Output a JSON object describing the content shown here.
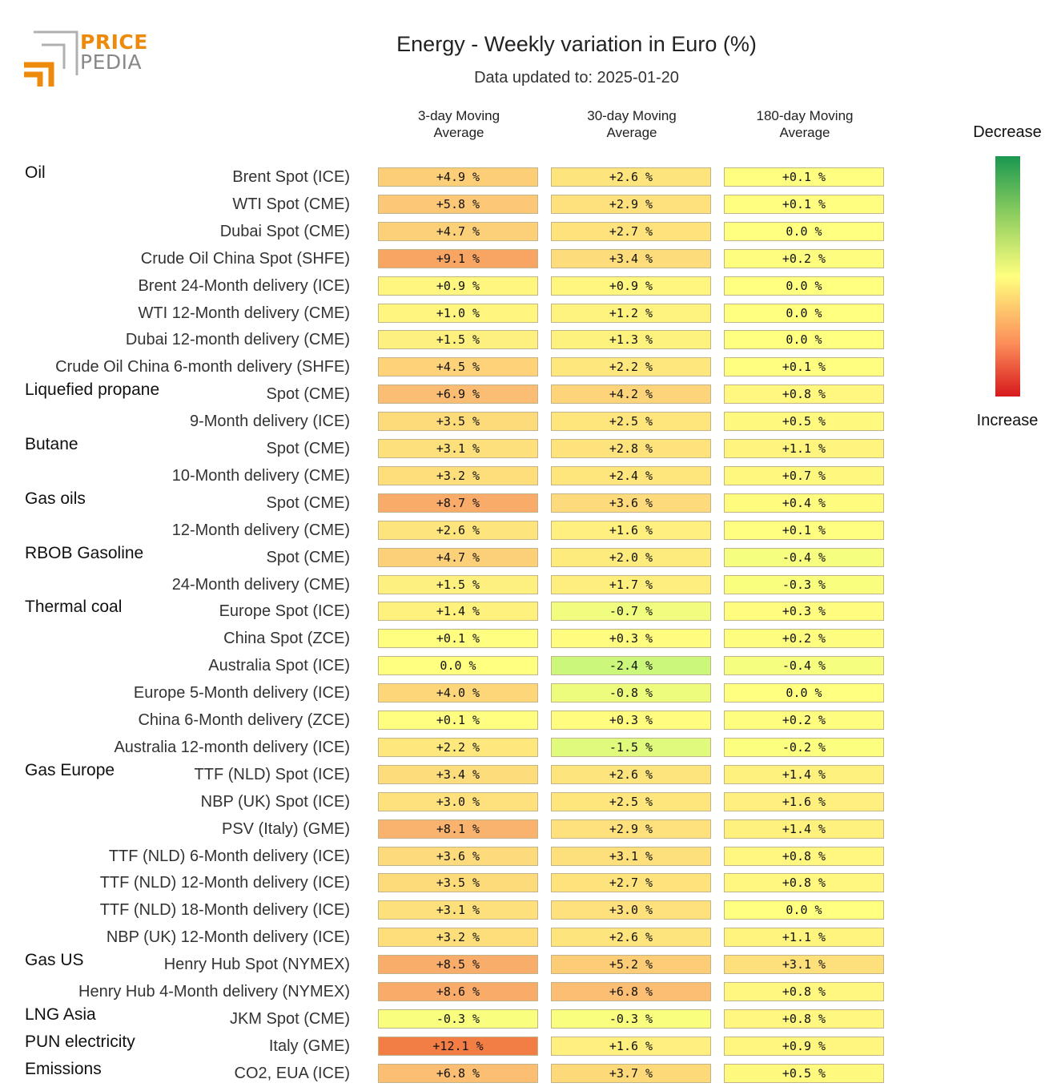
{
  "logo": {
    "line1": "PRICE",
    "line2": "PEDIA"
  },
  "title": "Energy - Weekly variation in Euro (%)",
  "subtitle": "Data updated to: 2025-01-20",
  "legend": {
    "top_label": "Decrease",
    "bottom_label": "Increase"
  },
  "chart_data": {
    "type": "table",
    "columns": [
      {
        "line1": "3-day Moving",
        "line2": "Average"
      },
      {
        "line1": "30-day Moving",
        "line2": "Average"
      },
      {
        "line1": "180-day Moving",
        "line2": "Average"
      }
    ],
    "rows": [
      {
        "group": "Oil",
        "label": "Brent Spot (ICE)",
        "values": [
          4.9,
          2.6,
          0.1
        ],
        "text": [
          "+4.9 %",
          "+2.6 %",
          "+0.1 %"
        ]
      },
      {
        "group": "",
        "label": "WTI Spot (CME)",
        "values": [
          5.8,
          2.9,
          0.1
        ],
        "text": [
          "+5.8 %",
          "+2.9 %",
          "+0.1 %"
        ]
      },
      {
        "group": "",
        "label": "Dubai Spot (CME)",
        "values": [
          4.7,
          2.7,
          0.0
        ],
        "text": [
          "+4.7 %",
          "+2.7 %",
          "0.0 %"
        ]
      },
      {
        "group": "",
        "label": "Crude Oil China Spot (SHFE)",
        "values": [
          9.1,
          3.4,
          0.2
        ],
        "text": [
          "+9.1 %",
          "+3.4 %",
          "+0.2 %"
        ]
      },
      {
        "group": "",
        "label": "Brent 24-Month delivery (ICE)",
        "values": [
          0.9,
          0.9,
          0.0
        ],
        "text": [
          "+0.9 %",
          "+0.9 %",
          "0.0 %"
        ]
      },
      {
        "group": "",
        "label": "WTI 12-Month delivery (CME)",
        "values": [
          1.0,
          1.2,
          0.0
        ],
        "text": [
          "+1.0 %",
          "+1.2 %",
          "0.0 %"
        ]
      },
      {
        "group": "",
        "label": "Dubai 12-month delivery (CME)",
        "values": [
          1.5,
          1.3,
          0.0
        ],
        "text": [
          "+1.5 %",
          "+1.3 %",
          "0.0 %"
        ]
      },
      {
        "group": "",
        "label": "Crude Oil China 6-month delivery (SHFE)",
        "values": [
          4.5,
          2.2,
          0.1
        ],
        "text": [
          "+4.5 %",
          "+2.2 %",
          "+0.1 %"
        ]
      },
      {
        "group": "Liquefied propane",
        "label": "Spot (CME)",
        "values": [
          6.9,
          4.2,
          0.8
        ],
        "text": [
          "+6.9 %",
          "+4.2 %",
          "+0.8 %"
        ]
      },
      {
        "group": "",
        "label": "9-Month delivery (ICE)",
        "values": [
          3.5,
          2.5,
          0.5
        ],
        "text": [
          "+3.5 %",
          "+2.5 %",
          "+0.5 %"
        ]
      },
      {
        "group": "Butane",
        "label": "Spot (CME)",
        "values": [
          3.1,
          2.8,
          1.1
        ],
        "text": [
          "+3.1 %",
          "+2.8 %",
          "+1.1 %"
        ]
      },
      {
        "group": "",
        "label": "10-Month delivery (CME)",
        "values": [
          3.2,
          2.4,
          0.7
        ],
        "text": [
          "+3.2 %",
          "+2.4 %",
          "+0.7 %"
        ]
      },
      {
        "group": "Gas oils",
        "label": "Spot (CME)",
        "values": [
          8.7,
          3.6,
          0.4
        ],
        "text": [
          "+8.7 %",
          "+3.6 %",
          "+0.4 %"
        ]
      },
      {
        "group": "",
        "label": "12-Month delivery (CME)",
        "values": [
          2.6,
          1.6,
          0.1
        ],
        "text": [
          "+2.6 %",
          "+1.6 %",
          "+0.1 %"
        ]
      },
      {
        "group": "RBOB Gasoline",
        "label": "Spot (CME)",
        "values": [
          4.7,
          2.0,
          -0.4
        ],
        "text": [
          "+4.7 %",
          "+2.0 %",
          "-0.4 %"
        ]
      },
      {
        "group": "",
        "label": "24-Month delivery (CME)",
        "values": [
          1.5,
          1.7,
          -0.3
        ],
        "text": [
          "+1.5 %",
          "+1.7 %",
          "-0.3 %"
        ]
      },
      {
        "group": "Thermal coal",
        "label": "Europe Spot (ICE)",
        "values": [
          1.4,
          -0.7,
          0.3
        ],
        "text": [
          "+1.4 %",
          "-0.7 %",
          "+0.3 %"
        ]
      },
      {
        "group": "",
        "label": "China Spot (ZCE)",
        "values": [
          0.1,
          0.3,
          0.2
        ],
        "text": [
          "+0.1 %",
          "+0.3 %",
          "+0.2 %"
        ]
      },
      {
        "group": "",
        "label": "Australia Spot (ICE)",
        "values": [
          0.0,
          -2.4,
          -0.4
        ],
        "text": [
          "0.0 %",
          "-2.4 %",
          "-0.4 %"
        ]
      },
      {
        "group": "",
        "label": "Europe 5-Month delivery (ICE)",
        "values": [
          4.0,
          -0.8,
          0.0
        ],
        "text": [
          "+4.0 %",
          "-0.8 %",
          "0.0 %"
        ]
      },
      {
        "group": "",
        "label": "China 6-Month delivery (ZCE)",
        "values": [
          0.1,
          0.3,
          0.2
        ],
        "text": [
          "+0.1 %",
          "+0.3 %",
          "+0.2 %"
        ]
      },
      {
        "group": "",
        "label": "Australia 12-month delivery (ICE)",
        "values": [
          2.2,
          -1.5,
          -0.2
        ],
        "text": [
          "+2.2 %",
          "-1.5 %",
          "-0.2 %"
        ]
      },
      {
        "group": "Gas Europe",
        "label": "TTF (NLD) Spot (ICE)",
        "values": [
          3.4,
          2.6,
          1.4
        ],
        "text": [
          "+3.4 %",
          "+2.6 %",
          "+1.4 %"
        ]
      },
      {
        "group": "",
        "label": "NBP (UK) Spot (ICE)",
        "values": [
          3.0,
          2.5,
          1.6
        ],
        "text": [
          "+3.0 %",
          "+2.5 %",
          "+1.6 %"
        ]
      },
      {
        "group": "",
        "label": "PSV (Italy) (GME)",
        "values": [
          8.1,
          2.9,
          1.4
        ],
        "text": [
          "+8.1 %",
          "+2.9 %",
          "+1.4 %"
        ]
      },
      {
        "group": "",
        "label": "TTF (NLD) 6-Month delivery (ICE)",
        "values": [
          3.6,
          3.1,
          0.8
        ],
        "text": [
          "+3.6 %",
          "+3.1 %",
          "+0.8 %"
        ]
      },
      {
        "group": "",
        "label": "TTF (NLD) 12-Month delivery (ICE)",
        "values": [
          3.5,
          2.7,
          0.8
        ],
        "text": [
          "+3.5 %",
          "+2.7 %",
          "+0.8 %"
        ]
      },
      {
        "group": "",
        "label": "TTF (NLD) 18-Month delivery (ICE)",
        "values": [
          3.1,
          3.0,
          0.0
        ],
        "text": [
          "+3.1 %",
          "+3.0 %",
          "0.0 %"
        ]
      },
      {
        "group": "",
        "label": "NBP (UK) 12-Month delivery (ICE)",
        "values": [
          3.2,
          2.6,
          1.1
        ],
        "text": [
          "+3.2 %",
          "+2.6 %",
          "+1.1 %"
        ]
      },
      {
        "group": "Gas US",
        "label": "Henry Hub Spot (NYMEX)",
        "values": [
          8.5,
          5.2,
          3.1
        ],
        "text": [
          "+8.5 %",
          "+5.2 %",
          "+3.1 %"
        ]
      },
      {
        "group": "",
        "label": "Henry Hub 4-Month delivery (NYMEX)",
        "values": [
          8.6,
          6.8,
          0.8
        ],
        "text": [
          "+8.6 %",
          "+6.8 %",
          "+0.8 %"
        ]
      },
      {
        "group": "LNG Asia",
        "label": "JKM Spot (CME)",
        "values": [
          -0.3,
          -0.3,
          0.8
        ],
        "text": [
          "-0.3 %",
          "-0.3 %",
          "+0.8 %"
        ]
      },
      {
        "group": "PUN electricity",
        "label": "Italy (GME)",
        "values": [
          12.1,
          1.6,
          0.9
        ],
        "text": [
          "+12.1 %",
          "+1.6 %",
          "+0.9 %"
        ]
      },
      {
        "group": "Emissions",
        "label": "CO2, EUA (ICE)",
        "values": [
          6.8,
          3.7,
          0.5
        ],
        "text": [
          "+6.8 %",
          "+3.7 %",
          "+0.5 %"
        ]
      }
    ]
  }
}
